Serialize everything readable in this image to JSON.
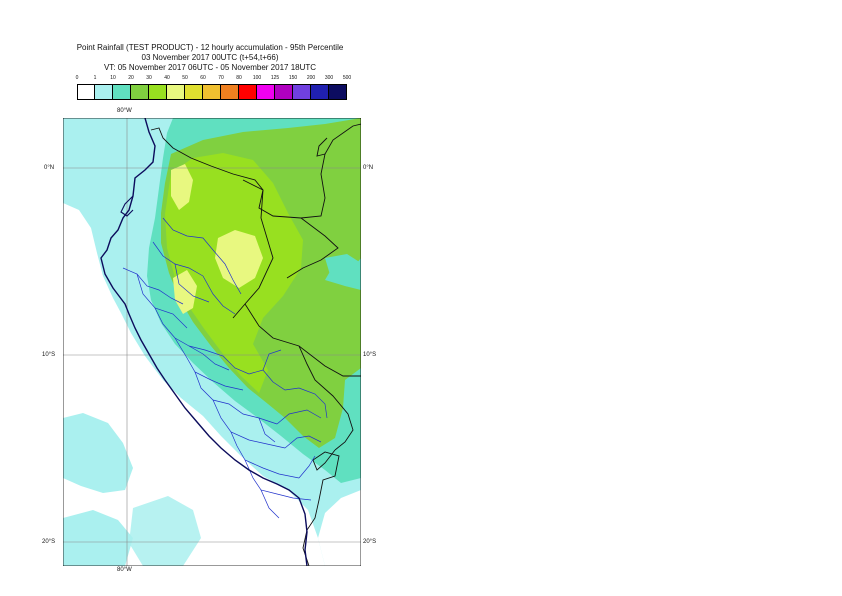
{
  "title": {
    "line1": "Point Rainfall (TEST PRODUCT) - 12 hourly accumulation - 95th Percentile",
    "line2": "03 November 2017 00UTC (t+54,t+66)",
    "line3": "VT: 05 November 2017 06UTC - 05 November 2017 18UTC"
  },
  "legend": {
    "ticks": [
      "0",
      "1",
      "10",
      "20",
      "30",
      "40",
      "50",
      "60",
      "70",
      "80",
      "100",
      "125",
      "150",
      "200",
      "300",
      "500"
    ],
    "colors": [
      "#ffffff",
      "#aaf0ef",
      "#60e0c0",
      "#80d040",
      "#98e020",
      "#e8f880",
      "#e0e030",
      "#f0c030",
      "#f08020",
      "#ff0000",
      "#f000f0",
      "#b000c0",
      "#7040e0",
      "#2020b0",
      "#0c0c60"
    ]
  },
  "map": {
    "lon_label_top": "80°W",
    "lon_label_bottom": "80°W",
    "lat_labels": [
      "0°N",
      "10°S",
      "20°S"
    ],
    "colors": {
      "cyan": "#aaf0ef",
      "teal": "#60e0c0",
      "green": "#80d040",
      "lime": "#98e020",
      "lightyellow": "#e8f880",
      "grid": "#8a8a8a",
      "coast": "#0c0c5c",
      "admin": "#2233cc",
      "border": "#111111"
    }
  }
}
